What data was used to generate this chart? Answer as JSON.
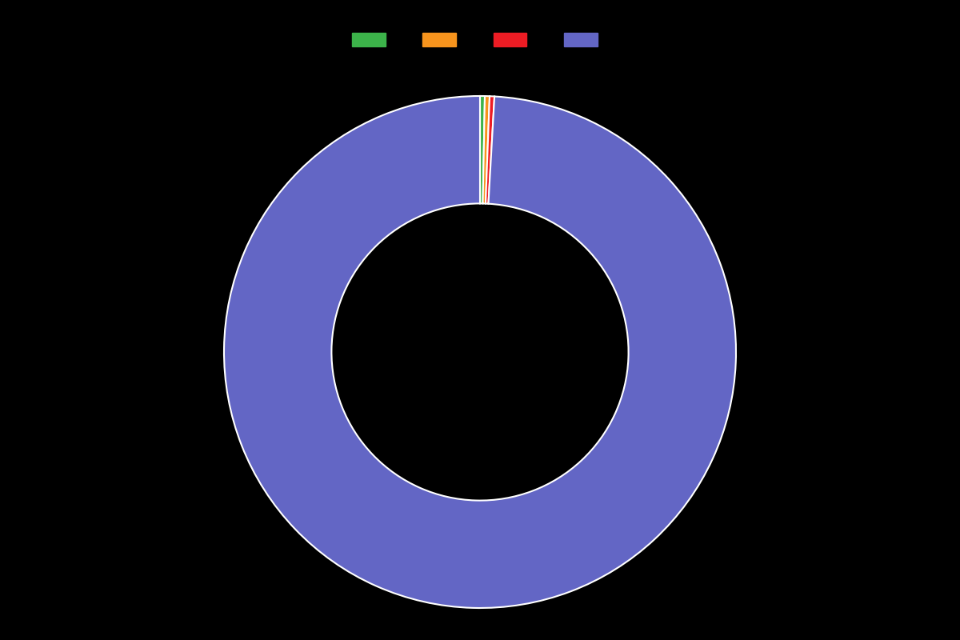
{
  "values": [
    0.3,
    0.3,
    0.3,
    99.1
  ],
  "colors": [
    "#3cb34a",
    "#f7941d",
    "#ed1c24",
    "#6366c5"
  ],
  "labels": [
    "",
    "",
    "",
    ""
  ],
  "background_color": "#000000",
  "wedge_edge_color": "#ffffff",
  "donut_width": 0.42,
  "legend_colors": [
    "#3cb34a",
    "#f7941d",
    "#ed1c24",
    "#6366c5"
  ],
  "legend_labels": [
    "",
    "",
    "",
    ""
  ],
  "startangle": 90,
  "counterclock": false
}
